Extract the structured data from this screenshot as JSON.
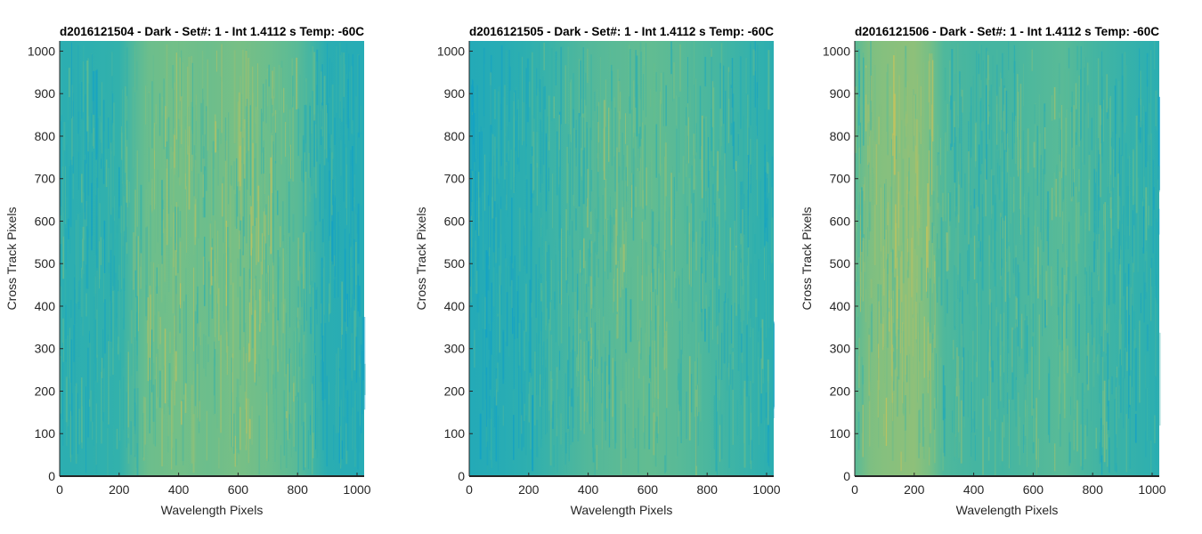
{
  "chart_data": [
    {
      "type": "heatmap",
      "title": "d2016121504 - Dark - Set#: 1 - Int 1.4112 s Temp: -60C",
      "xlabel": "Wavelength Pixels",
      "ylabel": "Cross Track Pixels",
      "xlim": [
        0,
        1024
      ],
      "ylim": [
        0,
        1024
      ],
      "xticks": [
        0,
        200,
        400,
        600,
        800,
        1000
      ],
      "yticks": [
        0,
        100,
        200,
        300,
        400,
        500,
        600,
        700,
        800,
        900,
        1000
      ],
      "colormap": [
        "#0e9fc9",
        "#2fb0ae",
        "#6fbf8a",
        "#c9c25a"
      ],
      "column_profile": {
        "x": [
          0,
          100,
          200,
          260,
          300,
          400,
          500,
          600,
          700,
          800,
          860,
          900,
          1000,
          1024
        ],
        "level": [
          0.3,
          0.32,
          0.35,
          0.55,
          0.65,
          0.68,
          0.65,
          0.7,
          0.65,
          0.55,
          0.4,
          0.28,
          0.25,
          0.25
        ]
      }
    },
    {
      "type": "heatmap",
      "title": "d2016121505 - Dark - Set#: 1 - Int 1.4112 s Temp: -60C",
      "xlabel": "Wavelength Pixels",
      "ylabel": "Cross Track Pixels",
      "xlim": [
        0,
        1024
      ],
      "ylim": [
        0,
        1024
      ],
      "xticks": [
        0,
        200,
        400,
        600,
        800,
        1000
      ],
      "yticks": [
        0,
        100,
        200,
        300,
        400,
        500,
        600,
        700,
        800,
        900,
        1000
      ],
      "colormap": [
        "#0e9fc9",
        "#2fb0ae",
        "#6fbf8a",
        "#c9c25a"
      ],
      "column_profile": {
        "x": [
          0,
          100,
          200,
          300,
          400,
          500,
          600,
          700,
          800,
          900,
          1000,
          1024
        ],
        "level": [
          0.22,
          0.25,
          0.32,
          0.42,
          0.52,
          0.56,
          0.6,
          0.55,
          0.48,
          0.4,
          0.32,
          0.3
        ]
      }
    },
    {
      "type": "heatmap",
      "title": "d2016121506 - Dark - Set#: 1 - Int 1.4112 s Temp: -60C",
      "xlabel": "Wavelength Pixels",
      "ylabel": "Cross Track Pixels",
      "xlim": [
        0,
        1024
      ],
      "ylim": [
        0,
        1024
      ],
      "xticks": [
        0,
        200,
        400,
        600,
        800,
        1000
      ],
      "yticks": [
        0,
        100,
        200,
        300,
        400,
        500,
        600,
        700,
        800,
        900,
        1000
      ],
      "colormap": [
        "#0e9fc9",
        "#2fb0ae",
        "#6fbf8a",
        "#c9c25a"
      ],
      "column_profile": {
        "x": [
          0,
          50,
          100,
          200,
          250,
          300,
          400,
          500,
          600,
          700,
          750,
          800,
          900,
          1000,
          1024
        ],
        "level": [
          0.55,
          0.72,
          0.75,
          0.78,
          0.7,
          0.5,
          0.45,
          0.45,
          0.5,
          0.55,
          0.5,
          0.45,
          0.38,
          0.32,
          0.3
        ]
      }
    }
  ]
}
